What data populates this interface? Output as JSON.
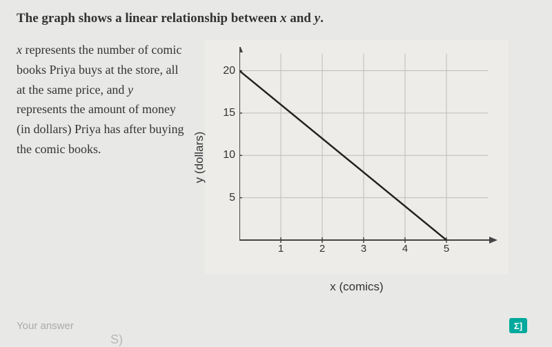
{
  "title_prefix": "The graph shows a linear relationship between ",
  "title_var1": "x",
  "title_mid": " and ",
  "title_var2": "y",
  "title_suffix": ".",
  "desc_p1": "x",
  "desc_t1": " represents the number of comic books Priya buys at the store, all at the same price, and ",
  "desc_p2": "y",
  "desc_t2": " represents the amount of money (in dollars) Priya has after buying the comic books.",
  "chart": {
    "y_label": "y (dollars)",
    "x_label": "x (comics)",
    "y_ticks": [
      5,
      10,
      15,
      20
    ],
    "x_ticks": [
      1,
      2,
      3,
      4,
      5
    ],
    "y_max": 22,
    "x_max": 6,
    "line": {
      "x1": 0,
      "y1": 20,
      "x2": 5,
      "y2": 0
    },
    "grid_color": "#bcbcb9",
    "axis_color": "#444",
    "line_color": "#222",
    "line_width": 2.5,
    "bg_color": "#edece9"
  },
  "answer_placeholder": "Your answer",
  "eq_badge": "Σ]"
}
